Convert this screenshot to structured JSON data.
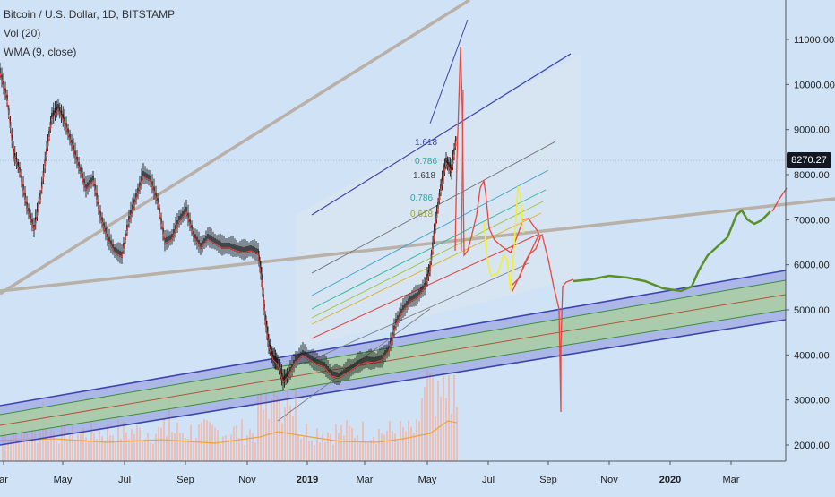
{
  "legend": {
    "symbol": "Bitcoin / U.S. Dollar, 1D, BITSTAMP",
    "vol": "Vol (20)",
    "wma": "WMA (9, close)"
  },
  "price_tag": "8270.27",
  "colors": {
    "background": "#cfe2f6",
    "candle": "#1f1f1f",
    "wma": "#e8473e",
    "projection_green": "#5b8f2a",
    "projection_yellow": "#f3ef2c",
    "projection_red": "#e8473e",
    "channel_blue": "#3d44b0",
    "channel_green": "#a9d39a",
    "trendline_gray": "#b9b1a8",
    "volume": "#f1b6a6",
    "volume_ma": "#f0a23c"
  },
  "chart_data": {
    "type": "line",
    "x_axis": {
      "ticks": [
        "ar",
        "May",
        "Jul",
        "Sep",
        "Nov",
        "2019",
        "Mar",
        "May",
        "Jul",
        "Sep",
        "Nov",
        "2020",
        "Mar"
      ]
    },
    "y_axis": {
      "ticks": [
        "11000.00",
        "10000.00",
        "9000.00",
        "8000.00",
        "7000.00",
        "6000.00",
        "5000.00",
        "4000.00",
        "3000.00",
        "2000.00"
      ],
      "range": [
        1900,
        11900
      ]
    },
    "current_price": 8270.27,
    "fib_labels": [
      "1.618",
      "0.786",
      "1.618",
      "0.786",
      "0.618"
    ],
    "series": [
      {
        "name": "WMA (9, close)",
        "values_note": ""
      }
    ]
  }
}
